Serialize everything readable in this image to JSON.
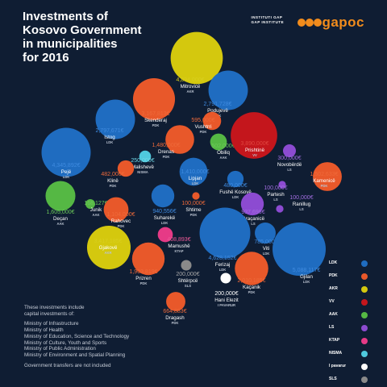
{
  "title": "Investments of\nKosovo Government\nin municipalities\nfor 2016",
  "brand": {
    "text": "gapoc",
    "subtitle": "INSTITUTI GAP\nGAP INSTITUTE",
    "color": "#f28c1c"
  },
  "notes": {
    "intro": [
      "These investments include",
      "capital investments of:"
    ],
    "ministries": [
      "Ministry of Infrastructure",
      "Ministry of Health",
      "Ministry of Education, Science and Technology",
      "Ministry of Culture, Youth and Sports",
      "Ministry of Public Administration",
      "Ministry of Environment and Spatial Planning"
    ],
    "footer": "Government transfers are not included"
  },
  "legend": [
    {
      "party": "LDK",
      "color": "#1f6cc0"
    },
    {
      "party": "PDK",
      "color": "#e8582a"
    },
    {
      "party": "AKR",
      "color": "#d4c80e"
    },
    {
      "party": "VV",
      "color": "#c4161c"
    },
    {
      "party": "AAK",
      "color": "#55b844"
    },
    {
      "party": "LS",
      "color": "#8c4bd1"
    },
    {
      "party": "KTAP",
      "color": "#e63a86"
    },
    {
      "party": "NISMA",
      "color": "#4fc9dd"
    },
    {
      "party": "I pavarur",
      "color": "#ffffff"
    },
    {
      "party": "SLS",
      "color": "#8a8a8a"
    }
  ],
  "chart_data": {
    "type": "bubble",
    "unit": "€",
    "points": [
      {
        "municipality": "Mitrovicë",
        "value": 4894000,
        "label": "4,894,000€",
        "party": "AKR"
      },
      {
        "municipality": "Podujevë",
        "value": 2791728,
        "label": "2,791,728€",
        "party": "LDK"
      },
      {
        "municipality": "Skenderaj",
        "value": 3167813,
        "label": "3,167,813€",
        "party": "PDK"
      },
      {
        "municipality": "Vushtrri",
        "value": 595000,
        "label": "595,000€",
        "party": "PDK"
      },
      {
        "municipality": "Istog",
        "value": 2797671,
        "label": "2,797,671€",
        "party": "LDK"
      },
      {
        "municipality": "Drenas",
        "value": 1480000,
        "label": "1,480,000€",
        "party": "PDK"
      },
      {
        "municipality": "Obiliq",
        "value": 502000,
        "label": "502,000€",
        "party": "AAK"
      },
      {
        "municipality": "Prishtinë",
        "value": 3890000,
        "label": "3,890,000€",
        "party": "VV"
      },
      {
        "municipality": "Novobërdë",
        "value": 300000,
        "label": "300,000€",
        "party": "LS"
      },
      {
        "municipality": "Malishevë",
        "value": 250000,
        "label": "250,000€",
        "party": "NISMA"
      },
      {
        "municipality": "Pejë",
        "value": 4345892,
        "label": "4,345,892€",
        "party": "LDK"
      },
      {
        "municipality": "Klinë",
        "value": 482000,
        "label": "482,000€",
        "party": "PDK"
      },
      {
        "municipality": "Lipjan",
        "value": 1410000,
        "label": "1,410,000€",
        "party": "LDK"
      },
      {
        "municipality": "Kamenicë",
        "value": 1502633,
        "label": "1,502,633€",
        "party": "PDK"
      },
      {
        "municipality": "Fushë Kosovë",
        "value": 480000,
        "label": "480,000€",
        "party": "LDK"
      },
      {
        "municipality": "Partesh",
        "value": 100000,
        "label": "100,000€",
        "party": "LS"
      },
      {
        "municipality": "Deçan",
        "value": 1605000,
        "label": "1,605,000€",
        "party": "AAK"
      },
      {
        "municipality": "Junik",
        "value": 168127,
        "label": "168,127€",
        "party": "AAK"
      },
      {
        "municipality": "Rahovec",
        "value": 1104000,
        "label": "1,104,000€",
        "party": "PDK"
      },
      {
        "municipality": "Suharekë",
        "value": 940556,
        "label": "940,556€",
        "party": "LDK"
      },
      {
        "municipality": "Shtime",
        "value": 100000,
        "label": "100,000€",
        "party": "PDK"
      },
      {
        "municipality": "Graçanicë",
        "value": 937696,
        "label": "937,696€",
        "party": "LS"
      },
      {
        "municipality": "Ranillug",
        "value": 100000,
        "label": "100,000€",
        "party": "LS"
      },
      {
        "municipality": "Mamushë",
        "value": 408893,
        "label": "408,893€",
        "party": "KTAP"
      },
      {
        "municipality": "Gjakovë",
        "value": 3417185,
        "label": "3,417,185€",
        "party": "AKR"
      },
      {
        "municipality": "Ferizaj",
        "value": 4628152,
        "label": "4,628,152€",
        "party": "LDK"
      },
      {
        "municipality": "Viti",
        "value": 785000,
        "label": "785,000€",
        "party": "LDK"
      },
      {
        "municipality": "Gjilan",
        "value": 5088117,
        "label": "5,088,117€",
        "party": "LDK"
      },
      {
        "municipality": "Prizren",
        "value": 1903819,
        "label": "1,903,819€",
        "party": "PDK"
      },
      {
        "municipality": "Shtërpcë",
        "value": 200000,
        "label": "200,000€",
        "party": "SLS"
      },
      {
        "municipality": "Hani Elezit",
        "value": 200000,
        "label": "200,000€",
        "party": "I PAVARUR"
      },
      {
        "municipality": "Kaçanik",
        "value": 2010185,
        "label": "2,010,185€",
        "party": "PDK"
      },
      {
        "municipality": "Dragash",
        "value": 664883,
        "label": "664,883€",
        "party": "PDK"
      }
    ]
  }
}
